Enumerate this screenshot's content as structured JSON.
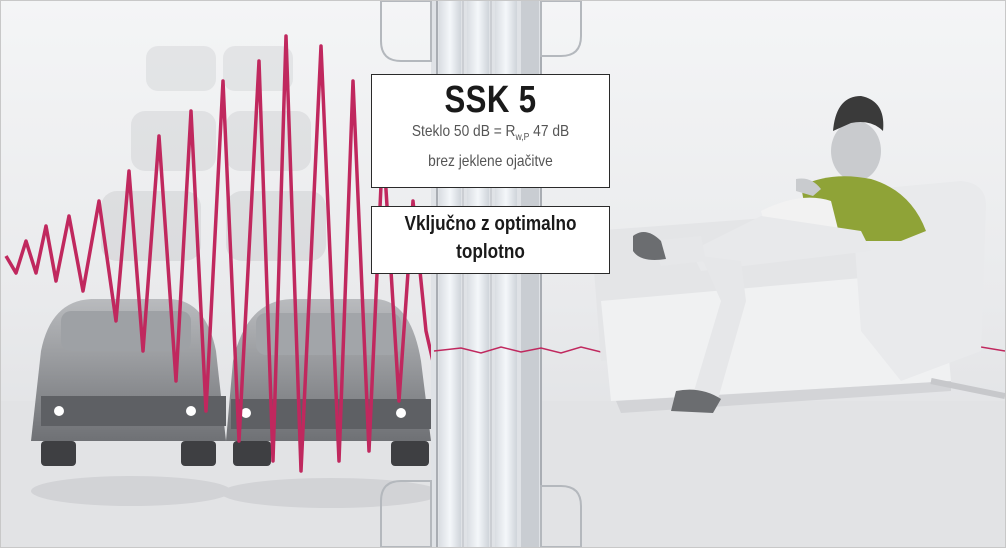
{
  "product": {
    "title": "SSK 5",
    "glass_prefix": "Steklo 50 dB = R",
    "rating_subscript": "w,P",
    "rating_suffix": " 47 dB",
    "reinforcement": "brez jeklene ojačitve"
  },
  "feature": {
    "line1": "Vključno z optimalno",
    "line2": "toplotno"
  },
  "colors": {
    "wave": "#c0285e",
    "background": "#eceded",
    "sweater": "#8fa337",
    "box_border": "#2a2a2a"
  },
  "icons": [
    "car-icon",
    "person-icon",
    "sofa-icon",
    "window-frame-icon"
  ]
}
